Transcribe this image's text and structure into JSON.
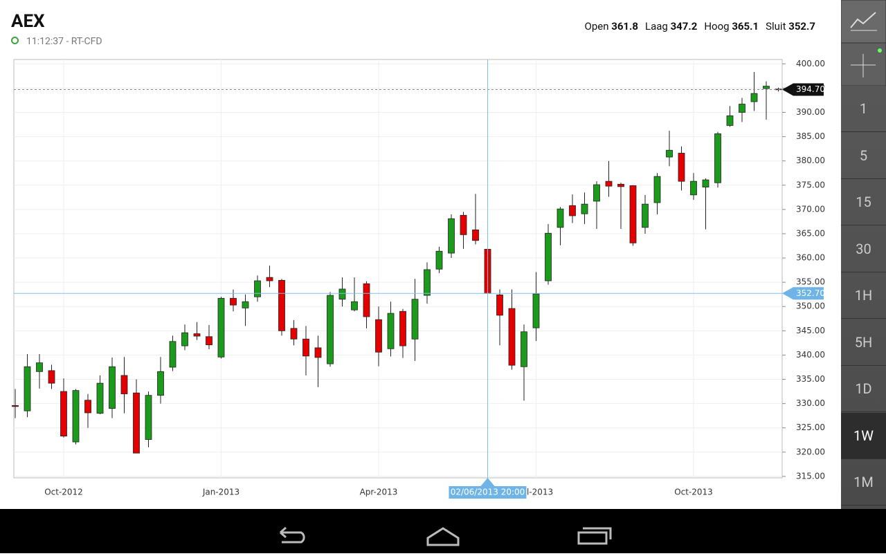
{
  "header": {
    "title": "AEX",
    "status": "11:12:37 - RT-CFD",
    "stats": [
      {
        "label": "Open",
        "value": "361.8"
      },
      {
        "label": "Laag",
        "value": "347.2"
      },
      {
        "label": "Hoog",
        "value": "365.1"
      },
      {
        "label": "Sluit",
        "value": "352.7"
      }
    ]
  },
  "sidebar": {
    "intervals": [
      "1",
      "5",
      "15",
      "30",
      "1H",
      "5H",
      "1D",
      "1W",
      "1M"
    ],
    "active_interval": 7
  },
  "chart_data": {
    "type": "candlestick",
    "up_color": "#1c9a1c",
    "down_color": "#e40000",
    "grid": true,
    "ylim": [
      314.7,
      400.9
    ],
    "yticks": [
      {
        "value": 315,
        "label": "315.00"
      },
      {
        "value": 320,
        "label": "320.00"
      },
      {
        "value": 325,
        "label": "325.00"
      },
      {
        "value": 330,
        "label": "330.00"
      },
      {
        "value": 335,
        "label": "335.00"
      },
      {
        "value": 340,
        "label": "340.00"
      },
      {
        "value": 345,
        "label": "345.00"
      },
      {
        "value": 350,
        "label": "350.00"
      },
      {
        "value": 355,
        "label": "355.00"
      },
      {
        "value": 360,
        "label": "360.00"
      },
      {
        "value": 365,
        "label": "365.00"
      },
      {
        "value": 370,
        "label": "370.00"
      },
      {
        "value": 375,
        "label": "375.00"
      },
      {
        "value": 380,
        "label": "380.00"
      },
      {
        "value": 385,
        "label": "385.00"
      },
      {
        "value": 390,
        "label": "390.00"
      },
      {
        "value": 395,
        "label": "395.00"
      },
      {
        "value": 400,
        "label": "400.00"
      }
    ],
    "categories": [
      null,
      null,
      null,
      null,
      "Oct-2012",
      null,
      null,
      null,
      null,
      null,
      null,
      null,
      null,
      null,
      null,
      null,
      null,
      "Jan-2013",
      null,
      null,
      null,
      null,
      null,
      null,
      null,
      null,
      null,
      null,
      null,
      null,
      "Apr-2013",
      null,
      null,
      null,
      null,
      null,
      null,
      null,
      null,
      null,
      null,
      null,
      null,
      "Jul-2013",
      null,
      null,
      null,
      null,
      null,
      null,
      null,
      null,
      null,
      null,
      null,
      null,
      "Oct-2013",
      null,
      null,
      null,
      null,
      null,
      null,
      null
    ],
    "open": [
      329.6,
      328.5,
      336.6,
      336.8,
      332.5,
      322.1,
      330.7,
      328,
      329,
      335.8,
      332.2,
      322.6,
      331.7,
      337.5,
      341.9,
      344.4,
      343.8,
      339.6,
      351.7,
      349.7,
      352,
      356,
      355.4,
      345.5,
      343.3,
      341.5,
      338.2,
      351.5,
      349.3,
      354.7,
      347.3,
      341.3,
      349,
      343.3,
      352.3,
      357.7,
      361,
      368.8,
      365.8,
      361.8,
      352.4,
      349.6,
      337.6,
      345.6,
      355.3,
      366.3,
      370.8,
      369.1,
      371.7,
      375.8,
      375.2,
      374.9,
      366.3,
      371.4,
      380.8,
      381.6,
      373,
      374.6,
      375.5,
      387.3,
      390,
      392.2,
      394.9,
      394.8
    ],
    "high": [
      333,
      340.2,
      340.2,
      338,
      335.2,
      333,
      332,
      335.8,
      339.5,
      339.6,
      335,
      332.5,
      339.6,
      344,
      346.3,
      346.8,
      346.2,
      352,
      353.5,
      352.5,
      356.4,
      358.4,
      355.7,
      347.2,
      346,
      344,
      353,
      356,
      356,
      355.2,
      350,
      351,
      349.5,
      355.7,
      359.1,
      362.3,
      369,
      369.5,
      373.2,
      365.1,
      353.5,
      353.5,
      346.3,
      357.1,
      367,
      370.5,
      373.1,
      373.5,
      375.8,
      380,
      375.5,
      375,
      373,
      377.5,
      386.2,
      383,
      377.5,
      376.4,
      386,
      391.3,
      393,
      398.3,
      396.4,
      395.1
    ],
    "low": [
      327,
      327.2,
      333.1,
      333,
      323,
      321.6,
      325,
      327.8,
      327,
      328,
      319.8,
      321,
      330,
      336.7,
      341,
      343.1,
      341.2,
      339.3,
      349,
      346,
      351,
      354,
      344,
      342,
      335.8,
      333.4,
      337.6,
      350,
      349,
      345.5,
      337.7,
      339.7,
      339.4,
      338.8,
      350.6,
      356.9,
      360,
      361.9,
      362.8,
      347.2,
      342,
      337,
      330.6,
      342.9,
      354.5,
      362.6,
      367.2,
      367,
      366,
      372.6,
      366,
      362.5,
      365,
      369,
      378.9,
      373.9,
      372,
      365.9,
      374.5,
      387,
      388,
      390.3,
      388.5,
      394.3
    ],
    "close": [
      329.4,
      337.6,
      338.4,
      334.2,
      323.3,
      332.7,
      328.1,
      334.2,
      337.6,
      332,
      319.8,
      331.7,
      336.6,
      342.8,
      344.6,
      343.9,
      342.1,
      351.7,
      350.3,
      351,
      355.3,
      355.3,
      345,
      343.3,
      339.8,
      339.5,
      352.3,
      353.6,
      351,
      347.9,
      340.6,
      348.6,
      341.9,
      351.5,
      357.6,
      361.4,
      368.1,
      364.8,
      363.6,
      352.7,
      348.2,
      337.9,
      344.8,
      352.6,
      365.1,
      370.1,
      368.7,
      371.1,
      375.1,
      374.8,
      374.7,
      363.1,
      371.1,
      376.8,
      382.2,
      375.8,
      375.8,
      376.1,
      385.6,
      389.3,
      391.7,
      393.9,
      395.4,
      394.7
    ],
    "last_price": {
      "value": 394.7,
      "label": "394.70"
    },
    "crosshair": {
      "index": 39,
      "value": 352.7,
      "label": "352.70",
      "date": "02/06/2013 20:00"
    }
  }
}
